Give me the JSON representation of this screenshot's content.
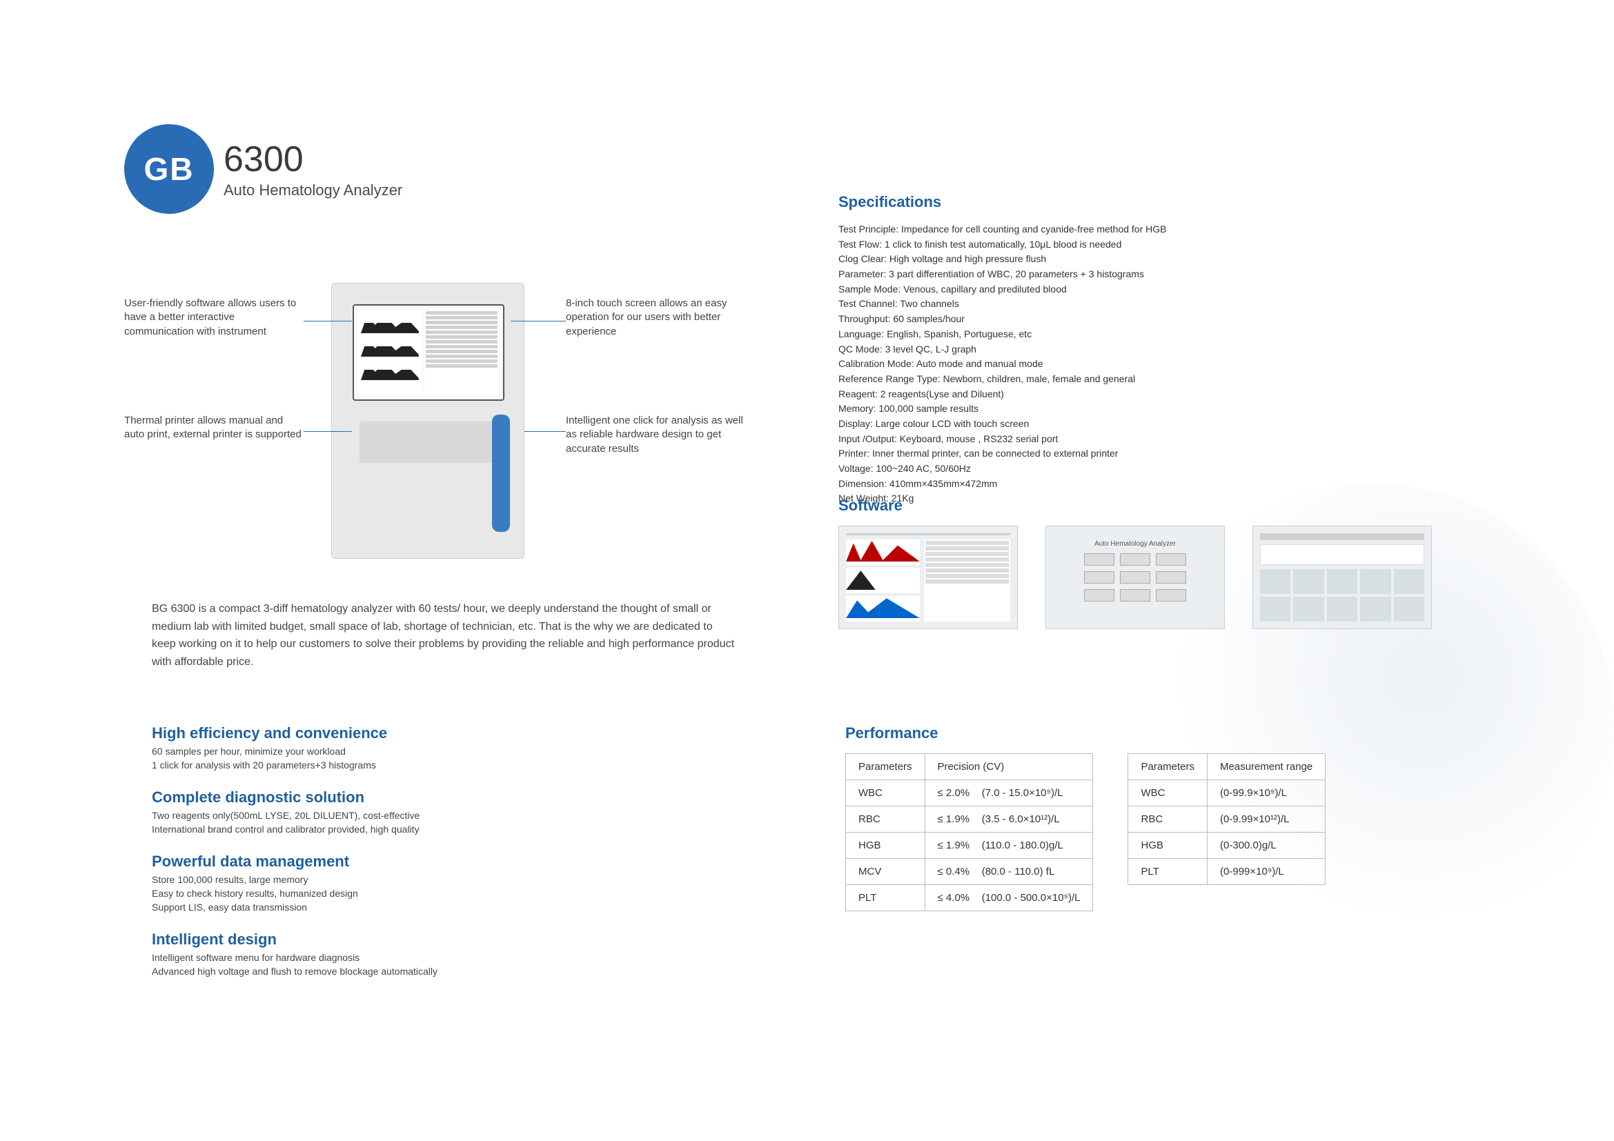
{
  "brand": {
    "logo_text": "GB",
    "model": "6300",
    "subtitle": "Auto Hematology Analyzer"
  },
  "callouts": {
    "tl": "User-friendly software allows users to have a better interactive communication with instrument",
    "tr": "8-inch touch screen allows an easy operation for our users with better experience",
    "bl": "Thermal printer allows manual and auto print, external printer is supported",
    "br": "Intelligent one click for analysis as well as reliable hardware design to get accurate results"
  },
  "intro": "BG 6300 is a compact 3-diff hematology analyzer with 60 tests/ hour, we deeply understand the thought of small or medium lab with limited budget, small space of lab, shortage of technician, etc. That is the why we are dedicated to keep working on it to help our customers to solve their problems by providing the reliable and high performance product with affordable price.",
  "features": [
    {
      "title": "High efficiency and convenience",
      "body": "60 samples per hour, minimize your workload\n1 click for analysis with 20 parameters+3 histograms"
    },
    {
      "title": "Complete diagnostic solution",
      "body": "Two reagents only(500mL LYSE, 20L DILUENT), cost-effective\nInternational brand control and calibrator provided, high quality"
    },
    {
      "title": "Powerful data management",
      "body": "Store 100,000 results, large memory\nEasy to check history results, humanized design\nSupport LIS, easy data transmission"
    },
    {
      "title": "Intelligent design",
      "body": "Intelligent software menu for hardware diagnosis\nAdvanced high voltage and flush to remove blockage automatically"
    }
  ],
  "spec_title": "Specifications",
  "specs": [
    "Test Principle: Impedance for cell counting and cyanide-free method for HGB",
    "Test Flow: 1 click to finish test automatically, 10μL blood is needed",
    "Clog Clear: High voltage and high pressure flush",
    "Parameter: 3 part differentiation of WBC,  20 parameters + 3 histograms",
    "Sample Mode: Venous, capillary and prediluted blood",
    "Test Channel: Two channels",
    "Throughput: 60 samples/hour",
    "Language: English, Spanish, Portuguese, etc",
    "QC Mode:  3 level QC, L-J graph",
    "Calibration Mode: Auto mode and manual mode",
    "Reference Range Type: Newborn,  children,  male,  female and general",
    "Reagent:  2 reagents(Lyse and Diluent)",
    "Memory:  100,000 sample results",
    "Display: Large colour LCD with touch screen",
    "Input /Output: Keyboard,  mouse , RS232 serial port",
    "Printer: Inner thermal printer,  can be connected to external printer",
    "Voltage: 100~240 AC, 50/60Hz",
    "Dimension: 410mm×435mm×472mm",
    "Net Weight: 21Kg"
  ],
  "software_title": "Software",
  "software_thumb2_caption": "Auto Hematology Analyzer",
  "perf_title": "Performance",
  "precision_table": {
    "headers": [
      "Parameters",
      "Precision (CV)"
    ],
    "rows": [
      [
        "WBC",
        "≤ 2.0%",
        "(7.0 - 15.0×10⁹)/L"
      ],
      [
        "RBC",
        "≤ 1.9%",
        "(3.5 - 6.0×10¹²)/L"
      ],
      [
        "HGB",
        "≤ 1.9%",
        "(110.0 - 180.0)g/L"
      ],
      [
        "MCV",
        "≤ 0.4%",
        "(80.0 - 110.0) fL"
      ],
      [
        "PLT",
        "≤ 4.0%",
        "(100.0 - 500.0×10⁹)/L"
      ]
    ]
  },
  "range_table": {
    "headers": [
      "Parameters",
      "Measurement range"
    ],
    "rows": [
      [
        "WBC",
        "(0-99.9×10⁹)/L"
      ],
      [
        "RBC",
        "(0-9.99×10¹²)/L"
      ],
      [
        "HGB",
        "(0-300.0)g/L"
      ],
      [
        "PLT",
        "(0-999×10⁹)/L"
      ]
    ]
  },
  "colors": {
    "brand_blue": "#2a6bb5",
    "heading_blue": "#1f5f9e",
    "text": "#333333",
    "border": "#bbbbbb",
    "panel_bg": "#eceff1"
  }
}
